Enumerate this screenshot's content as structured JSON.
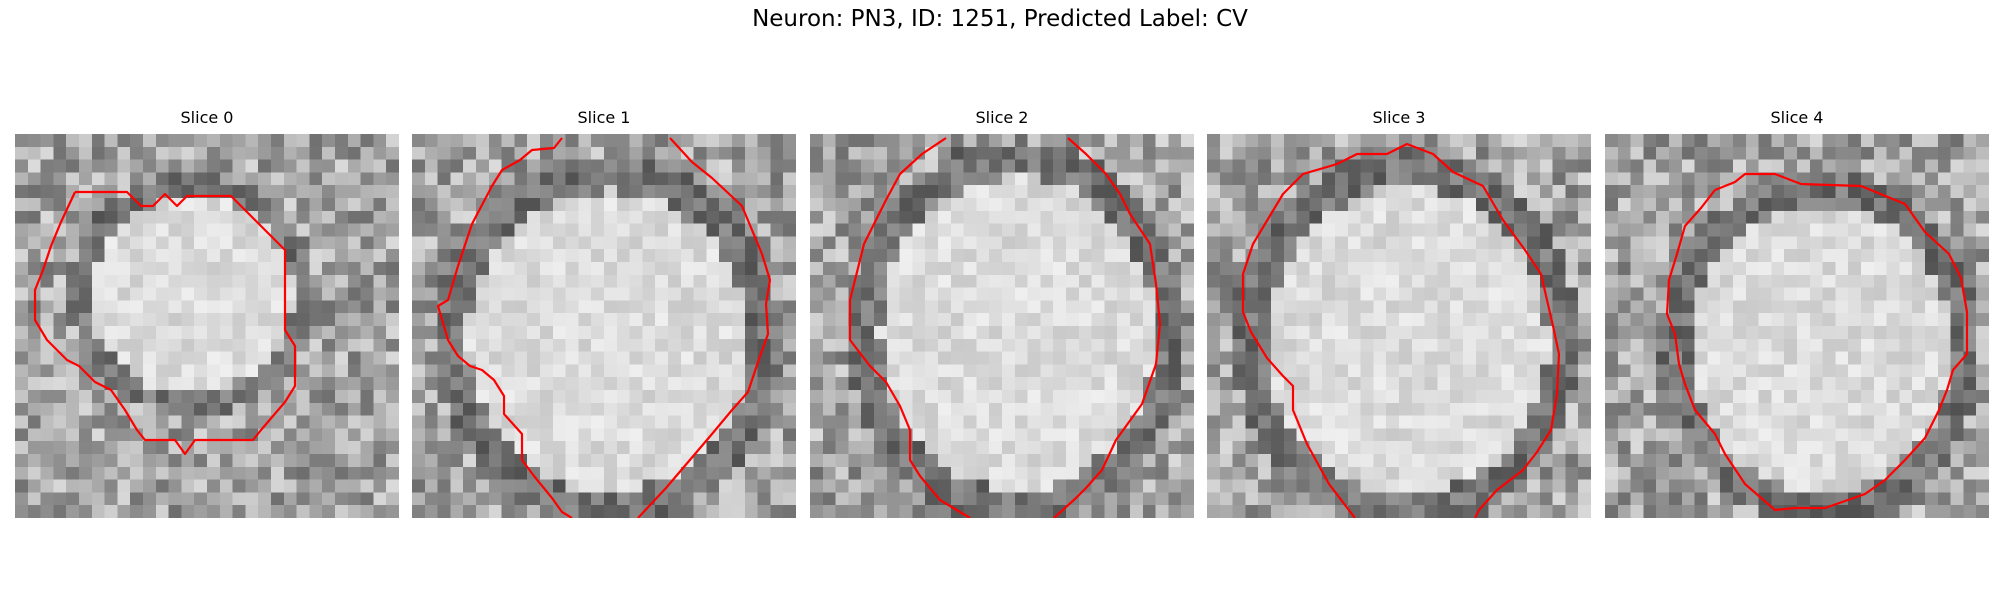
{
  "figure": {
    "title": "Neuron: PN3, ID: 1251, Predicted Label: CV",
    "contour_color": "#ff0000"
  },
  "panels": [
    {
      "title": "Slice 0"
    },
    {
      "title": "Slice 1"
    },
    {
      "title": "Slice 2"
    },
    {
      "title": "Slice 3"
    },
    {
      "title": "Slice 4"
    }
  ]
}
